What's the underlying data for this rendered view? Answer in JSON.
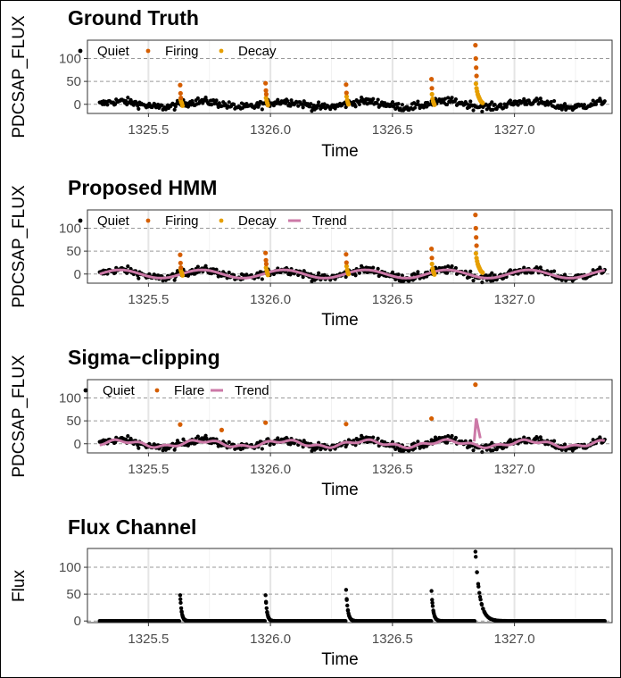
{
  "colors": {
    "quiet": "#000000",
    "firing": "#d55e00",
    "decay": "#e69f00",
    "trend": "#cc79a7",
    "grid_major": "#e5e5e5",
    "grid_dashed": "#9a9a9a",
    "panel_border": "#333333"
  },
  "chart_data": [
    {
      "type": "scatter",
      "title": "Ground Truth",
      "xlabel": "Time",
      "ylabel": "PDCSAP_FLUX",
      "xlim": [
        1325.25,
        1327.4
      ],
      "ylim": [
        -20,
        140
      ],
      "x_ticks": [
        "1325.5",
        "1326.0",
        "1326.5",
        "1327.0"
      ],
      "y_ticks": [
        "0",
        "50",
        "100"
      ],
      "legend": [
        "Quiet",
        "Firing",
        "Decay"
      ],
      "legend_position": "top-left",
      "grid": true,
      "quiet_noise_range": [
        -20,
        18
      ],
      "flares": [
        {
          "time": 1325.63,
          "firing": [
            42,
            24,
            14
          ],
          "decay": [
            10,
            5,
            2,
            -3
          ]
        },
        {
          "time": 1325.98,
          "firing": [
            46,
            30,
            22
          ],
          "decay": [
            14,
            8,
            3,
            -2
          ]
        },
        {
          "time": 1326.31,
          "firing": [
            43,
            25
          ],
          "decay": [
            17,
            9,
            4,
            0
          ]
        },
        {
          "time": 1326.66,
          "firing": [
            55,
            35
          ],
          "decay": [
            22,
            12,
            6,
            2,
            -1
          ]
        },
        {
          "time": 1326.84,
          "firing": [
            129,
            100,
            80,
            62
          ],
          "decay": [
            45,
            35,
            28,
            22,
            18,
            15,
            12,
            9,
            7,
            5,
            4,
            3
          ]
        }
      ]
    },
    {
      "type": "scatter",
      "title": "Proposed HMM",
      "xlabel": "Time",
      "ylabel": "PDCSAP_FLUX",
      "xlim": [
        1325.25,
        1327.4
      ],
      "ylim": [
        -20,
        140
      ],
      "x_ticks": [
        "1325.5",
        "1326.0",
        "1326.5",
        "1327.0"
      ],
      "y_ticks": [
        "0",
        "50",
        "100"
      ],
      "legend": [
        "Quiet",
        "Firing",
        "Decay",
        "Trend"
      ],
      "legend_position": "top-left",
      "grid": true,
      "trend": {
        "amplitude": 9,
        "period": 0.335
      }
    },
    {
      "type": "scatter",
      "title": "Sigma−clipping",
      "xlabel": "Time",
      "ylabel": "PDCSAP_FLUX",
      "xlim": [
        1325.25,
        1327.4
      ],
      "ylim": [
        -20,
        140
      ],
      "x_ticks": [
        "1325.5",
        "1326.0",
        "1326.5",
        "1327.0"
      ],
      "y_ticks": [
        "0",
        "50",
        "100"
      ],
      "legend": [
        "Quiet",
        "Flare",
        "Trend"
      ],
      "legend_position": "top-left",
      "grid": true,
      "flares": [
        {
          "time": 1325.63,
          "value": 42
        },
        {
          "time": 1325.8,
          "value": 30
        },
        {
          "time": 1325.98,
          "value": 46
        },
        {
          "time": 1326.31,
          "value": 43
        },
        {
          "time": 1326.66,
          "value": 55
        },
        {
          "time": 1326.84,
          "value": 129
        }
      ]
    },
    {
      "type": "scatter",
      "title": "Flux Channel",
      "xlabel": "Time",
      "ylabel": "Flux",
      "xlim": [
        1325.25,
        1327.4
      ],
      "ylim": [
        -3,
        135
      ],
      "x_ticks": [
        "1325.5",
        "1326.0",
        "1326.5",
        "1327.0"
      ],
      "y_ticks": [
        "0",
        "50",
        "100"
      ],
      "grid": true,
      "peaks": [
        {
          "time": 1325.63,
          "peak": 48,
          "tau": 0.006
        },
        {
          "time": 1325.98,
          "peak": 48,
          "tau": 0.006
        },
        {
          "time": 1326.31,
          "peak": 58,
          "tau": 0.007
        },
        {
          "time": 1326.66,
          "peak": 56,
          "tau": 0.007
        },
        {
          "time": 1326.84,
          "peak": 129,
          "tau": 0.018
        }
      ]
    }
  ]
}
